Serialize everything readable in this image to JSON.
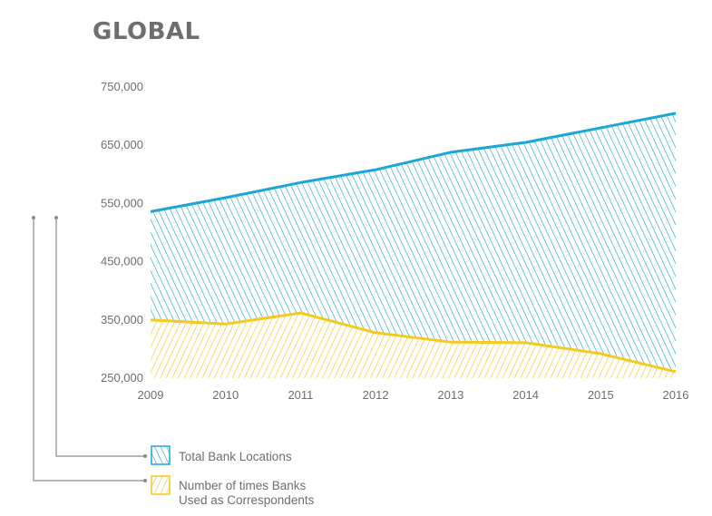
{
  "title": "GLOBAL",
  "colors": {
    "blue": "#1ba6d9",
    "yellow": "#f5c91f",
    "text": "#6d6e71",
    "leader": "#8a8a8a"
  },
  "chart_data": {
    "type": "area",
    "title": "GLOBAL",
    "xlabel": "",
    "ylabel": "",
    "categories": [
      "2009",
      "2010",
      "2011",
      "2012",
      "2013",
      "2014",
      "2015",
      "2016"
    ],
    "y_ticks": [
      "750,000",
      "650,000",
      "550,000",
      "450,000",
      "350,000",
      "250,000"
    ],
    "y_tick_values": [
      750000,
      650000,
      550000,
      450000,
      350000,
      250000
    ],
    "ylim": [
      250000,
      750000
    ],
    "grid": false,
    "legend_position": "bottom-left",
    "series": [
      {
        "name": "Total Bank Locations",
        "color": "#1ba6d9",
        "hatch": "backslash",
        "values": [
          536000,
          560000,
          586000,
          608000,
          638000,
          655000,
          680000,
          705000
        ]
      },
      {
        "name": "Number of times Banks Used as Correspondents",
        "color": "#f5c91f",
        "hatch": "slash",
        "values": [
          350000,
          343000,
          362000,
          328000,
          312000,
          311000,
          292000,
          261000
        ]
      }
    ]
  },
  "legend": [
    {
      "lines": [
        "Total Bank Locations"
      ]
    },
    {
      "lines": [
        "Number of times Banks",
        "Used as Correspondents"
      ]
    }
  ]
}
